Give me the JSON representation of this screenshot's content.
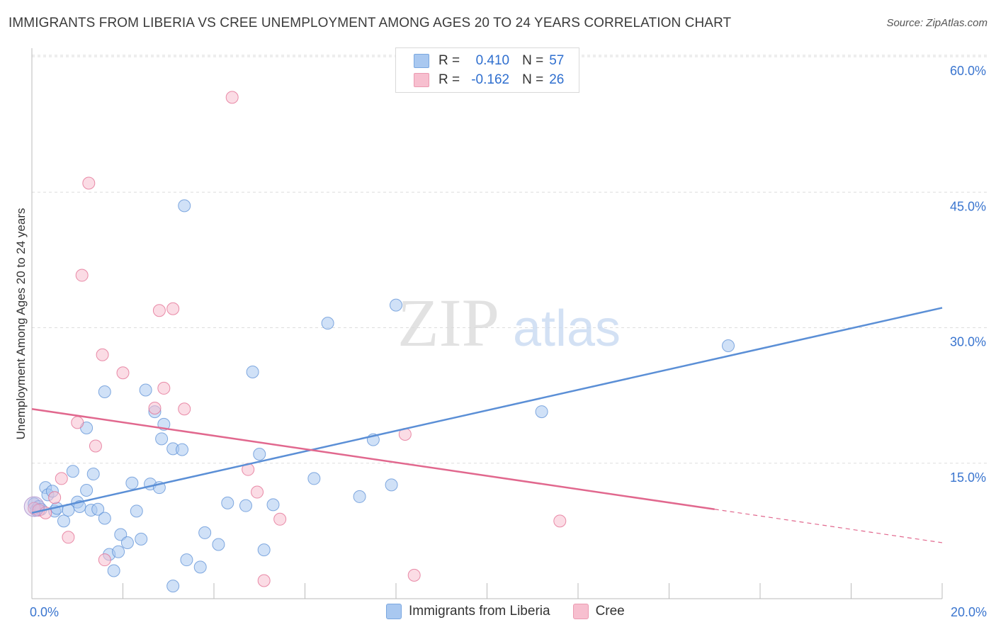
{
  "title": "IMMIGRANTS FROM LIBERIA VS CREE UNEMPLOYMENT AMONG AGES 20 TO 24 YEARS CORRELATION CHART",
  "source": "Source: ZipAtlas.com",
  "watermark": {
    "zip": "ZIP",
    "atlas": "atlas"
  },
  "legend": {
    "rows": [
      {
        "r_label": "R =",
        "r_value": "0.410",
        "n_label": "N =",
        "n_value": "57",
        "color": "#a9c8f0",
        "border": "#7aa7e0"
      },
      {
        "r_label": "R =",
        "r_value": "-0.162",
        "n_label": "N =",
        "n_value": "26",
        "color": "#f7bfcf",
        "border": "#eb9ab1"
      }
    ],
    "bottom": [
      "Immigrants from Liberia",
      "Cree"
    ]
  },
  "chart_data": {
    "type": "scatter",
    "title": "IMMIGRANTS FROM LIBERIA VS CREE UNEMPLOYMENT AMONG AGES 20 TO 24 YEARS CORRELATION CHART",
    "xlabel": "",
    "ylabel": "Unemployment Among Ages 20 to 24 years",
    "xlim": [
      0,
      20
    ],
    "ylim": [
      0,
      60
    ],
    "x_tick_labels": [
      "0.0%",
      "20.0%"
    ],
    "y_ticks": [
      15,
      30,
      45,
      60
    ],
    "y_tick_labels": [
      "15.0%",
      "30.0%",
      "45.0%",
      "60.0%"
    ],
    "series": [
      {
        "name": "Immigrants from Liberia",
        "color": "#5b8fd6",
        "fill": "#a9c8f0",
        "trendline": {
          "x": [
            0,
            20
          ],
          "y": [
            9.5,
            32.2
          ]
        },
        "points": [
          [
            0.05,
            10.5
          ],
          [
            0.1,
            9.8
          ],
          [
            0.15,
            10.2
          ],
          [
            0.2,
            9.9
          ],
          [
            0.3,
            12.3
          ],
          [
            0.35,
            11.5
          ],
          [
            0.45,
            11.9
          ],
          [
            0.5,
            9.7
          ],
          [
            0.55,
            10.0
          ],
          [
            0.7,
            8.6
          ],
          [
            0.8,
            9.8
          ],
          [
            0.9,
            14.1
          ],
          [
            1.0,
            10.7
          ],
          [
            1.05,
            10.2
          ],
          [
            1.2,
            12.0
          ],
          [
            1.3,
            9.8
          ],
          [
            1.35,
            13.8
          ],
          [
            1.45,
            9.9
          ],
          [
            1.6,
            8.9
          ],
          [
            1.2,
            18.9
          ],
          [
            1.6,
            22.9
          ],
          [
            1.7,
            4.9
          ],
          [
            1.8,
            3.1
          ],
          [
            1.9,
            5.2
          ],
          [
            1.95,
            7.1
          ],
          [
            2.1,
            6.2
          ],
          [
            2.2,
            12.8
          ],
          [
            2.3,
            9.7
          ],
          [
            2.4,
            6.6
          ],
          [
            2.5,
            23.1
          ],
          [
            2.6,
            12.7
          ],
          [
            2.7,
            20.7
          ],
          [
            2.8,
            12.3
          ],
          [
            2.85,
            17.7
          ],
          [
            2.9,
            19.3
          ],
          [
            3.1,
            16.6
          ],
          [
            3.1,
            1.4
          ],
          [
            3.3,
            16.5
          ],
          [
            3.35,
            43.5
          ],
          [
            3.4,
            4.3
          ],
          [
            3.7,
            3.5
          ],
          [
            3.8,
            7.3
          ],
          [
            4.1,
            6.0
          ],
          [
            4.3,
            10.6
          ],
          [
            4.7,
            10.3
          ],
          [
            4.85,
            25.1
          ],
          [
            5.0,
            16.0
          ],
          [
            5.1,
            5.4
          ],
          [
            5.3,
            10.4
          ],
          [
            6.2,
            13.3
          ],
          [
            6.5,
            30.5
          ],
          [
            7.2,
            11.3
          ],
          [
            7.5,
            17.6
          ],
          [
            7.9,
            12.6
          ],
          [
            8.0,
            32.5
          ],
          [
            11.2,
            20.7
          ],
          [
            15.3,
            28.0
          ]
        ]
      },
      {
        "name": "Cree",
        "color": "#e1688e",
        "fill": "#f7bfcf",
        "trendline": {
          "x": [
            0,
            15
          ],
          "y": [
            21.0,
            9.9
          ],
          "dashed_to": [
            20,
            6.2
          ]
        },
        "points": [
          [
            0.05,
            10.0
          ],
          [
            0.15,
            9.8
          ],
          [
            0.3,
            9.5
          ],
          [
            0.5,
            11.2
          ],
          [
            0.65,
            13.3
          ],
          [
            0.8,
            6.8
          ],
          [
            1.0,
            19.5
          ],
          [
            1.1,
            35.8
          ],
          [
            1.25,
            46.0
          ],
          [
            1.4,
            16.9
          ],
          [
            1.55,
            27.0
          ],
          [
            1.6,
            4.3
          ],
          [
            2.0,
            25.0
          ],
          [
            2.7,
            21.1
          ],
          [
            2.8,
            31.9
          ],
          [
            2.9,
            23.3
          ],
          [
            3.1,
            32.1
          ],
          [
            3.35,
            21.0
          ],
          [
            4.4,
            55.5
          ],
          [
            4.75,
            14.3
          ],
          [
            4.95,
            11.8
          ],
          [
            5.1,
            2.0
          ],
          [
            5.45,
            8.8
          ],
          [
            8.2,
            18.2
          ],
          [
            8.4,
            2.6
          ],
          [
            11.6,
            8.6
          ]
        ]
      }
    ]
  }
}
